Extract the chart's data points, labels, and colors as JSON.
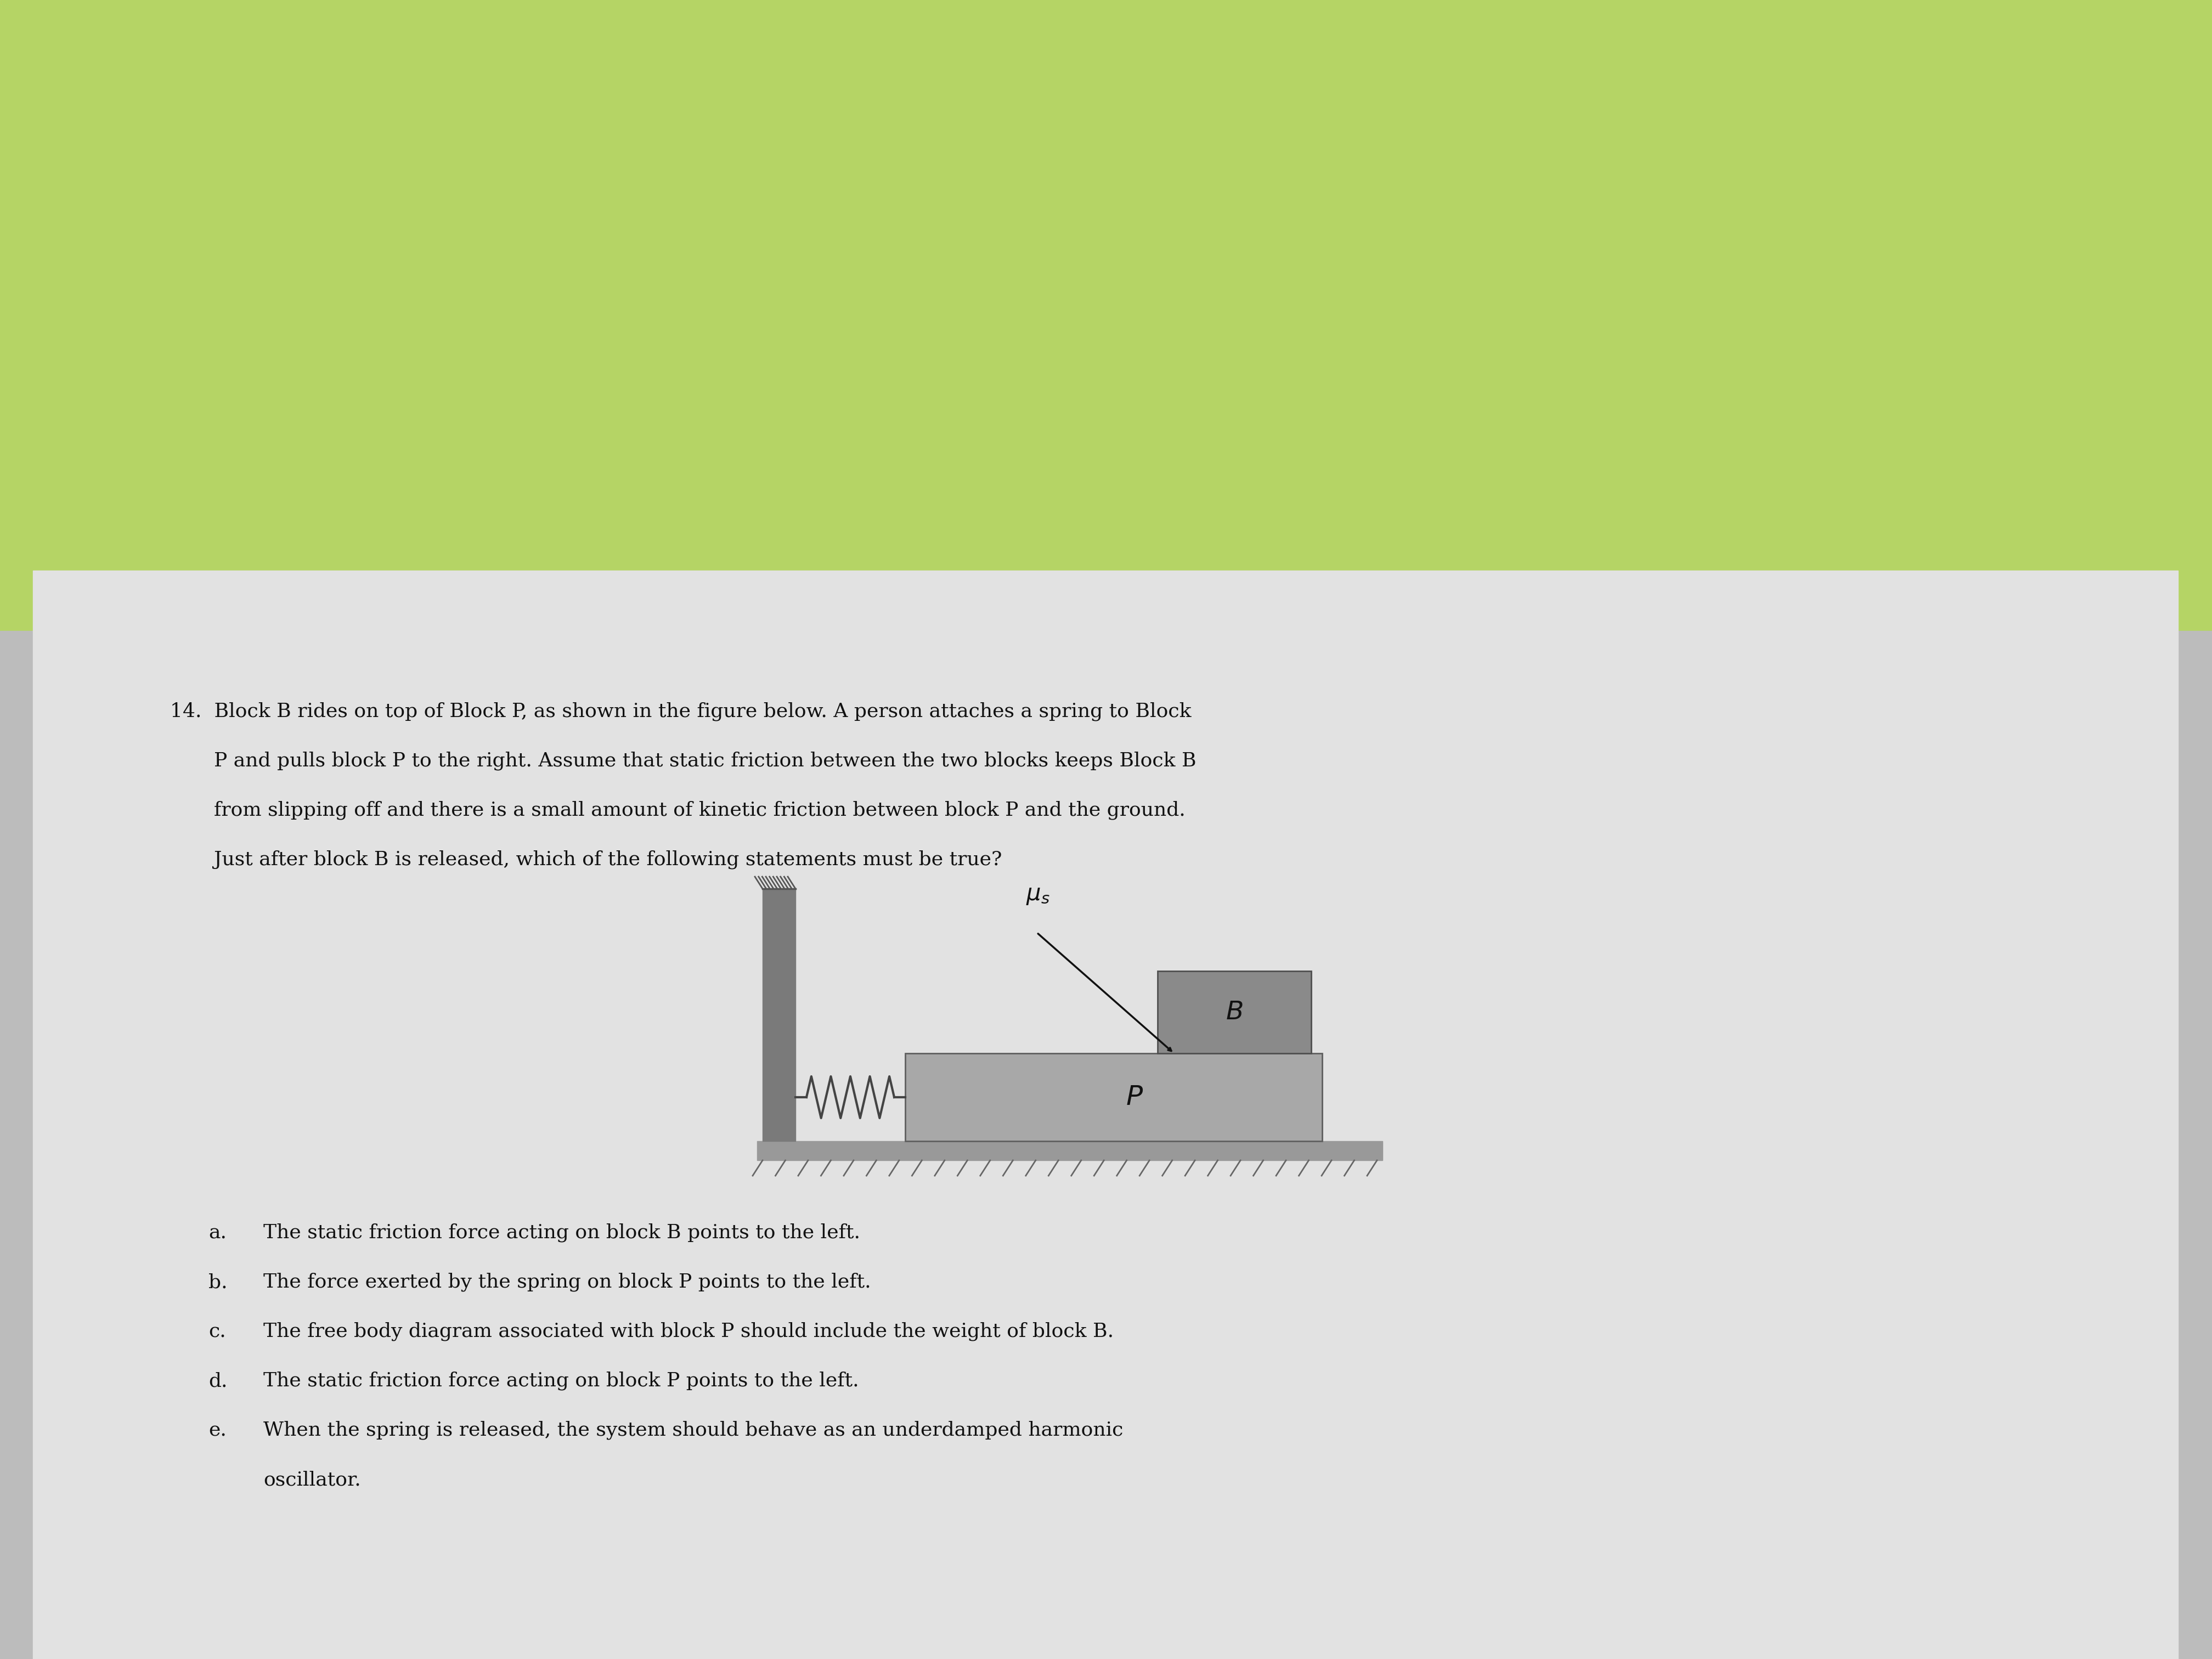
{
  "green_bg": "#b5d465",
  "paper_bg": "#d8d8d8",
  "page_color": "#e8e8e8",
  "wall_color": "#7a7a7a",
  "block_P_color": "#a8a8a8",
  "block_B_color": "#8a8a8a",
  "ground_color": "#b0b0b0",
  "spring_color": "#444444",
  "text_color": "#111111",
  "font_size_body": 26,
  "font_size_label": 28,
  "q_line1": "14.  Block B rides on top of Block P, as shown in the figure below. A person attaches a spring to Block",
  "q_line2": "P and pulls block P to the right. Assume that static friction between the two blocks keeps Block B",
  "q_line3": "from slipping off and there is a small amount of kinetic friction between block P and the ground.",
  "q_line4": "Just after block B is released, which of the following statements must be true?",
  "opt_a": "The static friction force acting on block B points to the left.",
  "opt_b": "The force exerted by the spring on block P points to the left.",
  "opt_c": "The free body diagram associated with block P should include the weight of block B.",
  "opt_d": "The static friction force acting on block P points to the left.",
  "opt_e1": "When the spring is released, the system should behave as an underdamped harmonic",
  "opt_e2": "oscillator."
}
